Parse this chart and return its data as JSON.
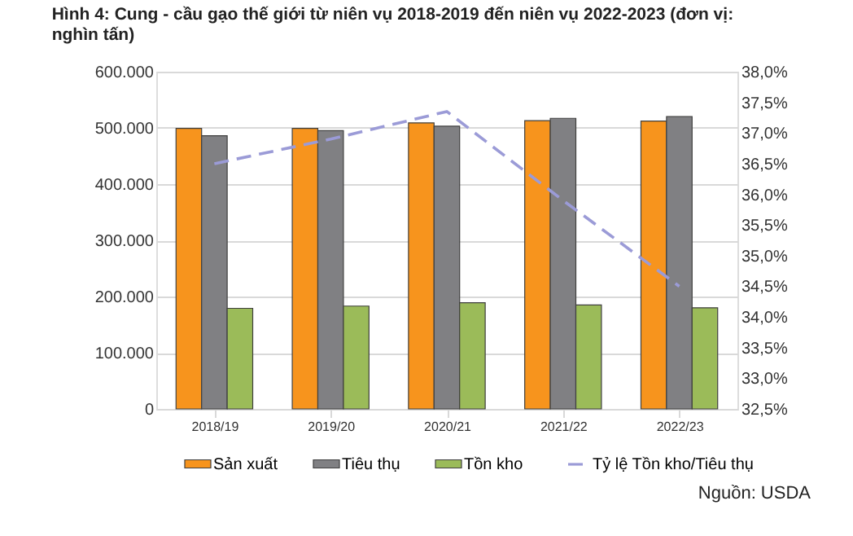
{
  "chart_data": {
    "type": "bar",
    "title": "Hình 4: Cung - cầu gạo thế giới từ niên vụ 2018-2019 đến niên vụ 2022-2023 (đơn vị: nghìn tấn)",
    "categories": [
      "2018/19",
      "2019/20",
      "2020/21",
      "2021/22",
      "2022/23"
    ],
    "series": [
      {
        "name": "Sản xuất",
        "color": "#f7941d",
        "values": [
          499000,
          499000,
          509000,
          513000,
          512000
        ]
      },
      {
        "name": "Tiêu thụ",
        "color": "#808083",
        "values": [
          486000,
          495000,
          503000,
          517000,
          520000
        ]
      },
      {
        "name": "Tồn kho",
        "color": "#9bbb59",
        "values": [
          179000,
          183000,
          189000,
          185000,
          180000
        ]
      },
      {
        "name": "Tỷ lệ Tồn kho/Tiêu thụ",
        "type": "line",
        "axis": "y2",
        "color": "#9b9bd7",
        "line_style": "dashed",
        "marker": "none",
        "values": [
          36.5,
          36.9,
          37.35,
          35.9,
          34.5
        ]
      }
    ],
    "ylim": [
      0,
      600000
    ],
    "yticks": [
      {
        "value": 0,
        "label": "0"
      },
      {
        "value": 100000,
        "label": "100.000"
      },
      {
        "value": 200000,
        "label": "200.000"
      },
      {
        "value": 300000,
        "label": "300.000"
      },
      {
        "value": 400000,
        "label": "400.000"
      },
      {
        "value": 500000,
        "label": "500.000"
      },
      {
        "value": 600000,
        "label": "600.000"
      }
    ],
    "y2lim": [
      32.5,
      38.0
    ],
    "y2ticks": [
      {
        "value": 32.5,
        "label": "32,5%"
      },
      {
        "value": 33.0,
        "label": "33,0%"
      },
      {
        "value": 33.5,
        "label": "33,5%"
      },
      {
        "value": 34.0,
        "label": "34,0%"
      },
      {
        "value": 34.5,
        "label": "34,5%"
      },
      {
        "value": 35.0,
        "label": "35,0%"
      },
      {
        "value": 35.5,
        "label": "35,5%"
      },
      {
        "value": 36.0,
        "label": "36,0%"
      },
      {
        "value": 36.5,
        "label": "36,5%"
      },
      {
        "value": 37.0,
        "label": "37,0%"
      },
      {
        "value": 37.5,
        "label": "37,5%"
      },
      {
        "value": 38.0,
        "label": "38,0%"
      }
    ],
    "grid": "y",
    "legend": "bottom",
    "annotations": [
      "Nguồn: USDA"
    ]
  }
}
